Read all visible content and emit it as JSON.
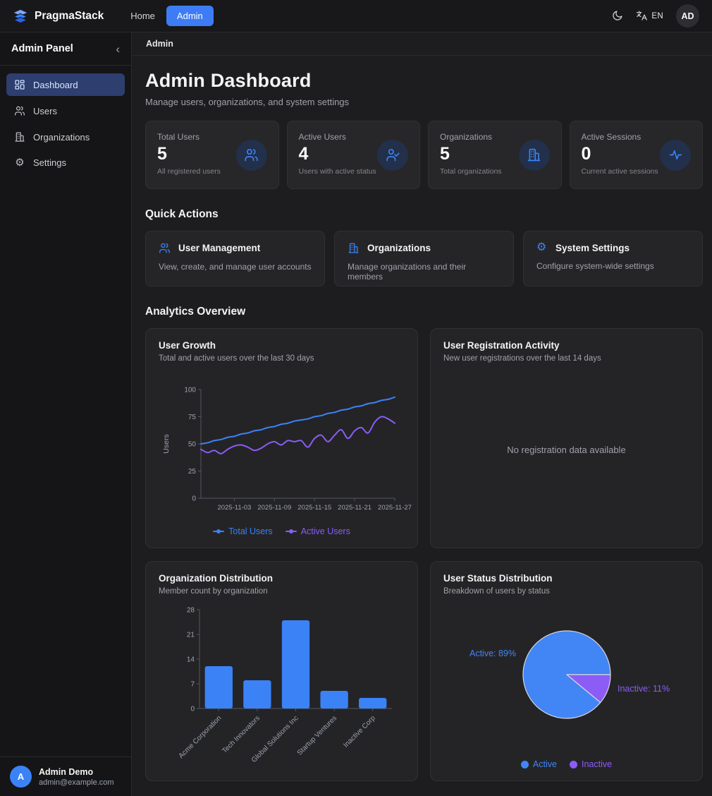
{
  "navbar": {
    "brand": "PragmaStack",
    "links": [
      {
        "label": "Home",
        "active": false
      },
      {
        "label": "Admin",
        "active": true
      }
    ],
    "language": "EN",
    "avatar_initials": "AD"
  },
  "sidebar": {
    "title": "Admin Panel",
    "collapse_icon": "‹",
    "items": [
      {
        "label": "Dashboard",
        "active": true
      },
      {
        "label": "Users",
        "active": false
      },
      {
        "label": "Organizations",
        "active": false
      },
      {
        "label": "Settings",
        "active": false
      }
    ],
    "user": {
      "initial": "A",
      "name": "Admin Demo",
      "email": "admin@example.com"
    }
  },
  "breadcrumb": "Admin",
  "header": {
    "title": "Admin Dashboard",
    "subtitle": "Manage users, organizations, and system settings"
  },
  "stats": [
    {
      "label": "Total Users",
      "value": "5",
      "description": "All registered users",
      "icon": "users-icon"
    },
    {
      "label": "Active Users",
      "value": "4",
      "description": "Users with active status",
      "icon": "user-check-icon"
    },
    {
      "label": "Organizations",
      "value": "5",
      "description": "Total organizations",
      "icon": "building-icon"
    },
    {
      "label": "Active Sessions",
      "value": "0",
      "description": "Current active sessions",
      "icon": "activity-icon"
    }
  ],
  "quick_actions": {
    "heading": "Quick Actions",
    "items": [
      {
        "title": "User Management",
        "description": "View, create, and manage user accounts",
        "icon": "users-icon"
      },
      {
        "title": "Organizations",
        "description": "Manage organizations and their members",
        "icon": "building-icon"
      },
      {
        "title": "System Settings",
        "description": "Configure system-wide settings",
        "icon": "gear-icon"
      }
    ]
  },
  "analytics_heading": "Analytics Overview",
  "colors": {
    "accent_blue": "#3b82f6",
    "accent_purple": "#8b5cf6",
    "axis": "#55555c",
    "tick_text": "#9ca3af"
  },
  "chart_data": [
    {
      "id": "user-growth",
      "type": "line",
      "title": "User Growth",
      "subtitle": "Total and active users over the last 30 days",
      "xlabel": "",
      "ylabel": "Users",
      "ylim": [
        0,
        100
      ],
      "yticks": [
        0,
        25,
        50,
        75,
        100
      ],
      "grid": false,
      "legend_position": "bottom",
      "x": [
        "2025-10-29",
        "2025-10-30",
        "2025-10-31",
        "2025-11-01",
        "2025-11-02",
        "2025-11-03",
        "2025-11-04",
        "2025-11-05",
        "2025-11-06",
        "2025-11-07",
        "2025-11-08",
        "2025-11-09",
        "2025-11-10",
        "2025-11-11",
        "2025-11-12",
        "2025-11-13",
        "2025-11-14",
        "2025-11-15",
        "2025-11-16",
        "2025-11-17",
        "2025-11-18",
        "2025-11-19",
        "2025-11-20",
        "2025-11-21",
        "2025-11-22",
        "2025-11-23",
        "2025-11-24",
        "2025-11-25",
        "2025-11-26",
        "2025-11-27"
      ],
      "xticks": [
        "2025-11-03",
        "2025-11-09",
        "2025-11-15",
        "2025-11-21",
        "2025-11-27"
      ],
      "series": [
        {
          "name": "Total Users",
          "color": "#3b82f6",
          "values": [
            50,
            51,
            53,
            54,
            56,
            57,
            59,
            60,
            62,
            63,
            65,
            66,
            68,
            69,
            71,
            72,
            73,
            75,
            76,
            78,
            79,
            81,
            82,
            84,
            85,
            87,
            88,
            90,
            91,
            93
          ]
        },
        {
          "name": "Active Users",
          "color": "#8b5cf6",
          "values": [
            45,
            42,
            44,
            41,
            45,
            48,
            49,
            47,
            44,
            46,
            50,
            52,
            49,
            53,
            52,
            53,
            47,
            55,
            58,
            52,
            58,
            63,
            55,
            62,
            65,
            60,
            70,
            75,
            73,
            69
          ]
        }
      ]
    },
    {
      "id": "registration-activity",
      "type": "empty",
      "title": "User Registration Activity",
      "subtitle": "New user registrations over the last 14 days",
      "empty_message": "No registration data available"
    },
    {
      "id": "org-distribution",
      "type": "bar",
      "title": "Organization Distribution",
      "subtitle": "Member count by organization",
      "categories": [
        "Acme Corporation",
        "Tech Innovators",
        "Global Solutions Inc",
        "Startup Ventures",
        "Inactive Corp"
      ],
      "values": [
        12,
        8,
        25,
        5,
        3
      ],
      "bar_color": "#3b82f6",
      "ylim": [
        0,
        28
      ],
      "yticks": [
        0,
        7,
        14,
        21,
        28
      ],
      "grid": false
    },
    {
      "id": "user-status",
      "type": "pie",
      "title": "User Status Distribution",
      "subtitle": "Breakdown of users by status",
      "labels": [
        "Active",
        "Inactive"
      ],
      "values": [
        89,
        11
      ],
      "colors": [
        "#4285f4",
        "#8b5cf6"
      ],
      "slice_labels": [
        "Active: 89%",
        "Inactive: 11%"
      ],
      "legend_position": "bottom"
    }
  ]
}
